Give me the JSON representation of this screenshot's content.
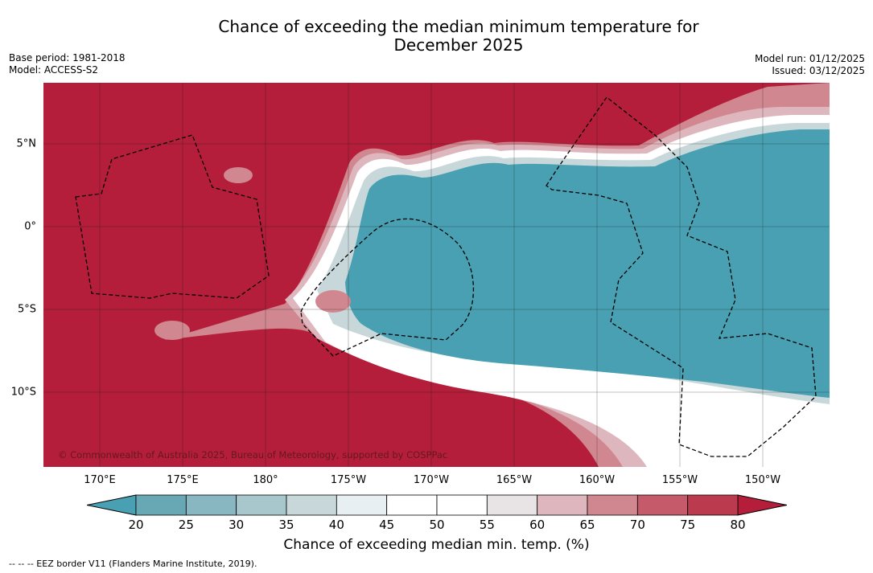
{
  "header": {
    "title_line1": "Chance of exceeding the median minimum temperature for",
    "title_line2": "December 2025",
    "base_period": "Base period: 1981-2018",
    "model": "Model: ACCESS-S2",
    "model_run": "Model run: 01/12/2025",
    "issued": "Issued: 03/12/2025"
  },
  "map": {
    "copyright": "© Commonwealth of Australia 2025, Bureau of Meteorology, supported by COSPPac",
    "lon_labels": [
      "170°E",
      "175°E",
      "180°",
      "175°W",
      "170°W",
      "165°W",
      "160°W",
      "155°W",
      "150°W"
    ],
    "lat_labels": [
      "5°N",
      "0°",
      "5°S",
      "10°S"
    ],
    "background_color": "#b41e3a",
    "cool_color": "#48a0b2"
  },
  "colorbar": {
    "ticks": [
      "20",
      "25",
      "30",
      "35",
      "40",
      "45",
      "50",
      "55",
      "60",
      "65",
      "70",
      "75",
      "80"
    ],
    "bins": [
      {
        "range": "20-25",
        "color": "#68a8b5"
      },
      {
        "range": "25-30",
        "color": "#88b7c2"
      },
      {
        "range": "30-35",
        "color": "#a8c7cc"
      },
      {
        "range": "35-40",
        "color": "#c8d8da"
      },
      {
        "range": "40-45",
        "color": "#e8eff2"
      },
      {
        "range": "45-50",
        "color": "#ffffff"
      },
      {
        "range": "50-55",
        "color": "#ffffff"
      },
      {
        "range": "55-60",
        "color": "#e8e4e6"
      },
      {
        "range": "60-65",
        "color": "#deb6bd"
      },
      {
        "range": "65-70",
        "color": "#d18790"
      },
      {
        "range": "70-75",
        "color": "#c45a6a"
      },
      {
        "range": "75-80",
        "color": "#bb3a4e"
      }
    ],
    "low_extend_color": "#48a0b2",
    "high_extend_color": "#b41e3a",
    "label": "Chance of exceeding median min. temp. (%)"
  },
  "footer": {
    "eez_note": "-- -- -- EEZ border V11 (Flanders Marine Institute, 2019)."
  }
}
